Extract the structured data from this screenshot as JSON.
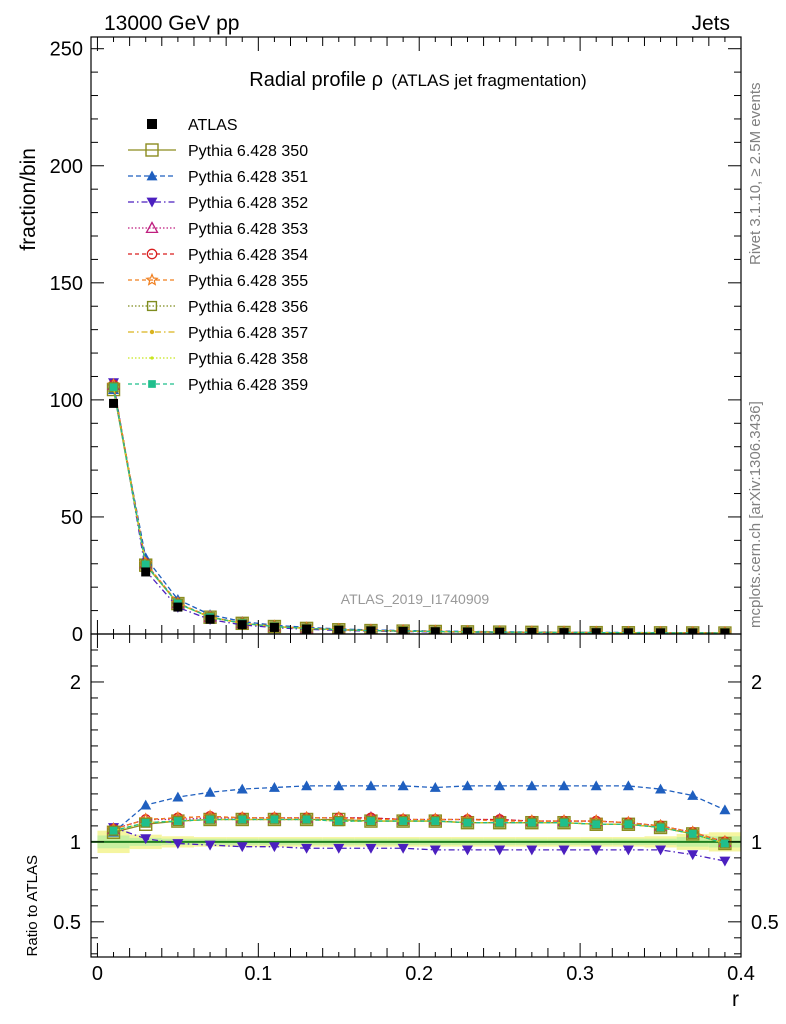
{
  "header": {
    "left": "13000 GeV pp",
    "right": "Jets"
  },
  "side": {
    "rivet": "Rivet 3.1.10, ≥ 2.5M events",
    "mcplots": "mcplots.cern.ch [arXiv:1306.3436]"
  },
  "chart_data": {
    "type": "line",
    "title": "Radial profile ρ (ATLAS jet fragmentation)",
    "title_main": "Radial profile ρ",
    "title_sub": "(ATLAS jet fragmentation)",
    "watermark": "ATLAS_2019_I1740909",
    "xlabel": "r",
    "ylabel_top": "fraction/bin",
    "ylabel_bottom": "Ratio to ATLAS",
    "xlim": [
      -0.004,
      0.4
    ],
    "ylim_top": [
      0,
      255
    ],
    "ylim_bottom": [
      0.28,
      2.3
    ],
    "x_ticks": [
      "0",
      "0.1",
      "0.2",
      "0.3",
      "0.4"
    ],
    "y_ticks_top": [
      "0",
      "50",
      "100",
      "150",
      "200",
      "250"
    ],
    "y_ticks_bottom": [
      "0.5",
      "1",
      "2"
    ],
    "x": [
      0.01,
      0.03,
      0.05,
      0.07,
      0.09,
      0.11,
      0.13,
      0.15,
      0.17,
      0.19,
      0.21,
      0.23,
      0.25,
      0.27,
      0.29,
      0.31,
      0.33,
      0.35,
      0.37,
      0.39
    ],
    "data": {
      "name": "ATLAS",
      "values": [
        98.5,
        26.5,
        11.5,
        6.3,
        4.0,
        2.8,
        2.1,
        1.6,
        1.3,
        1.1,
        0.95,
        0.82,
        0.72,
        0.64,
        0.58,
        0.53,
        0.49,
        0.46,
        0.44,
        0.42
      ]
    },
    "band": {
      "name": "ATLAS uncertainty",
      "inner_lo": [
        0.96,
        0.975,
        0.98,
        0.98,
        0.98,
        0.98,
        0.98,
        0.98,
        0.98,
        0.98,
        0.98,
        0.98,
        0.98,
        0.98,
        0.98,
        0.98,
        0.98,
        0.98,
        0.97,
        0.965
      ],
      "inner_hi": [
        1.04,
        1.025,
        1.02,
        1.02,
        1.02,
        1.02,
        1.02,
        1.02,
        1.02,
        1.02,
        1.02,
        1.02,
        1.02,
        1.02,
        1.02,
        1.02,
        1.02,
        1.02,
        1.03,
        1.035
      ],
      "outer_lo": [
        0.93,
        0.955,
        0.965,
        0.97,
        0.97,
        0.97,
        0.97,
        0.97,
        0.97,
        0.97,
        0.97,
        0.97,
        0.97,
        0.97,
        0.97,
        0.97,
        0.97,
        0.965,
        0.95,
        0.94
      ],
      "outer_hi": [
        1.07,
        1.045,
        1.035,
        1.03,
        1.03,
        1.03,
        1.03,
        1.03,
        1.03,
        1.03,
        1.03,
        1.03,
        1.03,
        1.03,
        1.03,
        1.03,
        1.03,
        1.035,
        1.05,
        1.06
      ]
    },
    "series": [
      {
        "name": "Pythia 6.428 350",
        "color": "#8c8c1f",
        "dash": "",
        "marker": "square-open",
        "ratio": [
          1.06,
          1.11,
          1.13,
          1.14,
          1.14,
          1.14,
          1.14,
          1.14,
          1.13,
          1.13,
          1.13,
          1.12,
          1.12,
          1.12,
          1.12,
          1.11,
          1.11,
          1.09,
          1.05,
          0.99
        ]
      },
      {
        "name": "Pythia 6.428 351",
        "color": "#1f5fbf",
        "dash": "5,3",
        "marker": "triangle-up",
        "ratio": [
          1.06,
          1.23,
          1.28,
          1.31,
          1.33,
          1.34,
          1.35,
          1.35,
          1.35,
          1.35,
          1.34,
          1.35,
          1.35,
          1.35,
          1.35,
          1.35,
          1.35,
          1.33,
          1.29,
          1.2
        ]
      },
      {
        "name": "Pythia 6.428 352",
        "color": "#4b1fbf",
        "dash": "6,3,1.5,3",
        "marker": "triangle-down",
        "ratio": [
          1.09,
          1.02,
          0.99,
          0.98,
          0.97,
          0.97,
          0.96,
          0.96,
          0.96,
          0.96,
          0.95,
          0.95,
          0.95,
          0.95,
          0.95,
          0.95,
          0.95,
          0.95,
          0.92,
          0.88
        ]
      },
      {
        "name": "Pythia 6.428 353",
        "color": "#bf1f7f",
        "dash": "1.5,2",
        "marker": "triangle-up-open",
        "ratio": [
          1.08,
          1.14,
          1.14,
          1.15,
          1.15,
          1.15,
          1.15,
          1.15,
          1.15,
          1.14,
          1.14,
          1.14,
          1.14,
          1.13,
          1.13,
          1.13,
          1.12,
          1.1,
          1.06,
          1.0
        ]
      },
      {
        "name": "Pythia 6.428 354",
        "color": "#d91f1f",
        "dash": "4,3",
        "marker": "circle-open",
        "ratio": [
          1.08,
          1.14,
          1.15,
          1.16,
          1.15,
          1.15,
          1.15,
          1.15,
          1.15,
          1.14,
          1.14,
          1.14,
          1.14,
          1.13,
          1.13,
          1.13,
          1.12,
          1.1,
          1.06,
          1.0
        ]
      },
      {
        "name": "Pythia 6.428 355",
        "color": "#f07f1f",
        "dash": "4,3",
        "marker": "star-open",
        "ratio": [
          1.08,
          1.14,
          1.15,
          1.16,
          1.15,
          1.15,
          1.15,
          1.15,
          1.14,
          1.14,
          1.14,
          1.14,
          1.13,
          1.13,
          1.13,
          1.13,
          1.12,
          1.1,
          1.06,
          1.0
        ]
      },
      {
        "name": "Pythia 6.428 356",
        "color": "#7f8c1f",
        "dash": "1.5,2",
        "marker": "square-open-small",
        "ratio": [
          1.07,
          1.12,
          1.13,
          1.14,
          1.14,
          1.14,
          1.14,
          1.13,
          1.13,
          1.13,
          1.13,
          1.12,
          1.12,
          1.12,
          1.12,
          1.11,
          1.11,
          1.09,
          1.05,
          0.99
        ]
      },
      {
        "name": "Pythia 6.428 357",
        "color": "#d9b31f",
        "dash": "6,3,1.5,3",
        "marker": "dot",
        "ratio": [
          1.07,
          1.12,
          1.13,
          1.14,
          1.14,
          1.14,
          1.14,
          1.13,
          1.13,
          1.13,
          1.13,
          1.12,
          1.12,
          1.12,
          1.12,
          1.11,
          1.11,
          1.09,
          1.05,
          0.99
        ]
      },
      {
        "name": "Pythia 6.428 358",
        "color": "#c8e61f",
        "dash": "1.5,2",
        "marker": "dot-small",
        "ratio": [
          1.07,
          1.12,
          1.13,
          1.14,
          1.14,
          1.14,
          1.14,
          1.13,
          1.13,
          1.13,
          1.13,
          1.12,
          1.12,
          1.12,
          1.12,
          1.11,
          1.11,
          1.09,
          1.05,
          0.99
        ]
      },
      {
        "name": "Pythia 6.428 359",
        "color": "#1fbf8c",
        "dash": "4,3",
        "marker": "square-filled",
        "ratio": [
          1.07,
          1.12,
          1.13,
          1.14,
          1.14,
          1.14,
          1.14,
          1.13,
          1.13,
          1.13,
          1.13,
          1.12,
          1.12,
          1.12,
          1.12,
          1.11,
          1.11,
          1.09,
          1.05,
          0.99
        ]
      }
    ]
  }
}
